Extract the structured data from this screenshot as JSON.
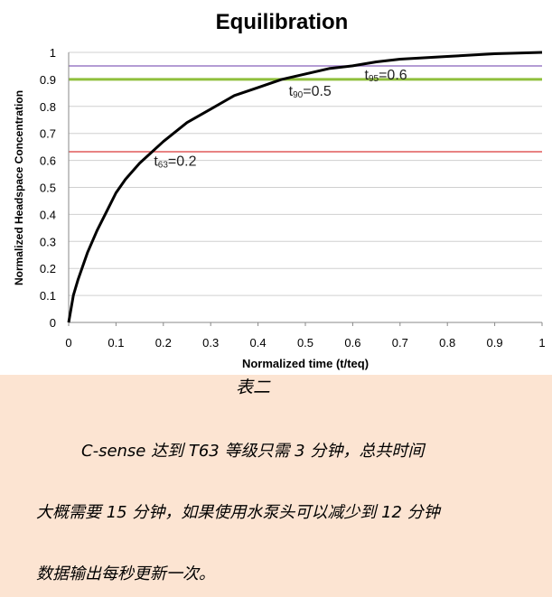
{
  "chart_data": {
    "type": "line",
    "title": "Equilibration",
    "xlabel": "Normalized time (t/teq)",
    "ylabel": "Normalized Headspace Concentration",
    "xlim": [
      0,
      1
    ],
    "ylim": [
      0,
      1
    ],
    "x_ticks": [
      "0",
      "0.1",
      "0.2",
      "0.3",
      "0.4",
      "0.5",
      "0.6",
      "0.7",
      "0.8",
      "0.9",
      "1"
    ],
    "y_ticks": [
      "0",
      "0.1",
      "0.2",
      "0.3",
      "0.4",
      "0.5",
      "0.6",
      "0.7",
      "0.8",
      "0.9",
      "1"
    ],
    "grid": "horizontal",
    "series": [
      {
        "color": "#000000",
        "x": [
          0,
          0.01,
          0.02,
          0.04,
          0.06,
          0.08,
          0.1,
          0.12,
          0.15,
          0.2,
          0.25,
          0.3,
          0.35,
          0.4,
          0.45,
          0.5,
          0.55,
          0.6,
          0.65,
          0.7,
          0.8,
          0.9,
          1.0
        ],
        "y": [
          0,
          0.1,
          0.16,
          0.26,
          0.34,
          0.41,
          0.48,
          0.53,
          0.59,
          0.67,
          0.74,
          0.79,
          0.84,
          0.87,
          0.9,
          0.92,
          0.94,
          0.95,
          0.965,
          0.975,
          0.985,
          0.995,
          1.0
        ]
      }
    ],
    "reference_lines": [
      {
        "y": 0.632,
        "color": "#e05a5a"
      },
      {
        "y": 0.9,
        "color": "#8fbf3c"
      },
      {
        "y": 0.95,
        "color": "#9c7bc6"
      }
    ],
    "annotations": [
      {
        "text_sub": "63",
        "text_value": "=0.2",
        "x": 0.18,
        "y": 0.58
      },
      {
        "text_sub": "90",
        "text_value": "=0.5",
        "x": 0.465,
        "y": 0.84
      },
      {
        "text_sub": "95",
        "text_value": "=0.6",
        "x": 0.625,
        "y": 0.9
      }
    ]
  },
  "caption": "表二",
  "paragraphs": [
    "C-sense 达到 T63 等级只需 3 分钟，总共时间",
    "大概需要 15 分钟，如果使用水泵头可以减少到 12 分钟",
    "数据输出每秒更新一次。"
  ]
}
